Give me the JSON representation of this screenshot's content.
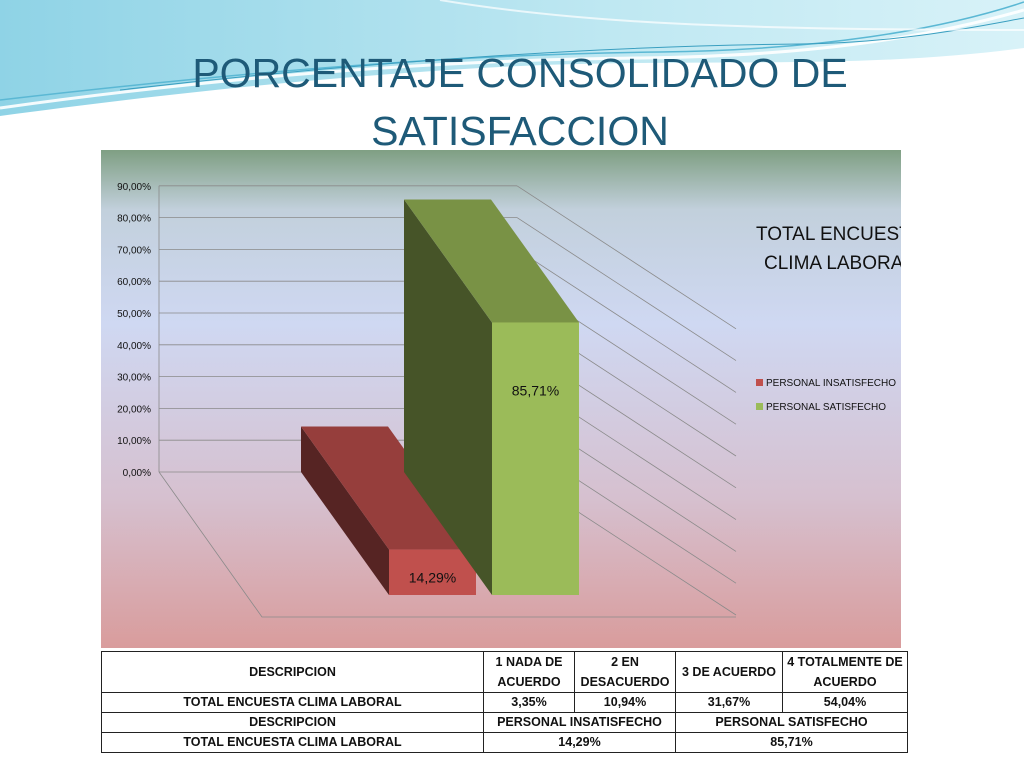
{
  "slide": {
    "title_line1": "PORCENTAJE CONSOLIDADO DE",
    "title_line2": "SATISFACCION",
    "accent_color": "#1e5a78"
  },
  "chart_data": {
    "type": "bar",
    "title_line1": "TOTAL ENCUESTA",
    "title_line2": "CLIMA LABORAL",
    "categories": [
      "TOTAL ENCUESTA CLIMA LABORAL"
    ],
    "series": [
      {
        "name": "PERSONAL INSATISFECHO",
        "values": [
          14.29
        ],
        "label": "14,29%",
        "color": "#c0504d"
      },
      {
        "name": "PERSONAL SATISFECHO",
        "values": [
          85.71
        ],
        "label": "85,71%",
        "color": "#9bbb59"
      }
    ],
    "ylim": [
      0,
      90
    ],
    "yticks": [
      "0,00%",
      "10,00%",
      "20,00%",
      "30,00%",
      "40,00%",
      "50,00%",
      "60,00%",
      "70,00%",
      "80,00%",
      "90,00%"
    ],
    "grid": true,
    "legend_position": "right",
    "style": "3d-perspective"
  },
  "table": {
    "row1": [
      "DESCRIPCION",
      "1 NADA DE ACUERDO",
      "2 EN DESACUERDO",
      "3 DE ACUERDO",
      "4 TOTALMENTE DE ACUERDO"
    ],
    "row2": [
      "TOTAL ENCUESTA CLIMA LABORAL",
      "3,35%",
      "10,94%",
      "31,67%",
      "54,04%"
    ],
    "row3": [
      "DESCRIPCION",
      "PERSONAL INSATISFECHO",
      "PERSONAL SATISFECHO"
    ],
    "row4": [
      "TOTAL ENCUESTA CLIMA LABORAL",
      "14,29%",
      "85,71%"
    ]
  }
}
